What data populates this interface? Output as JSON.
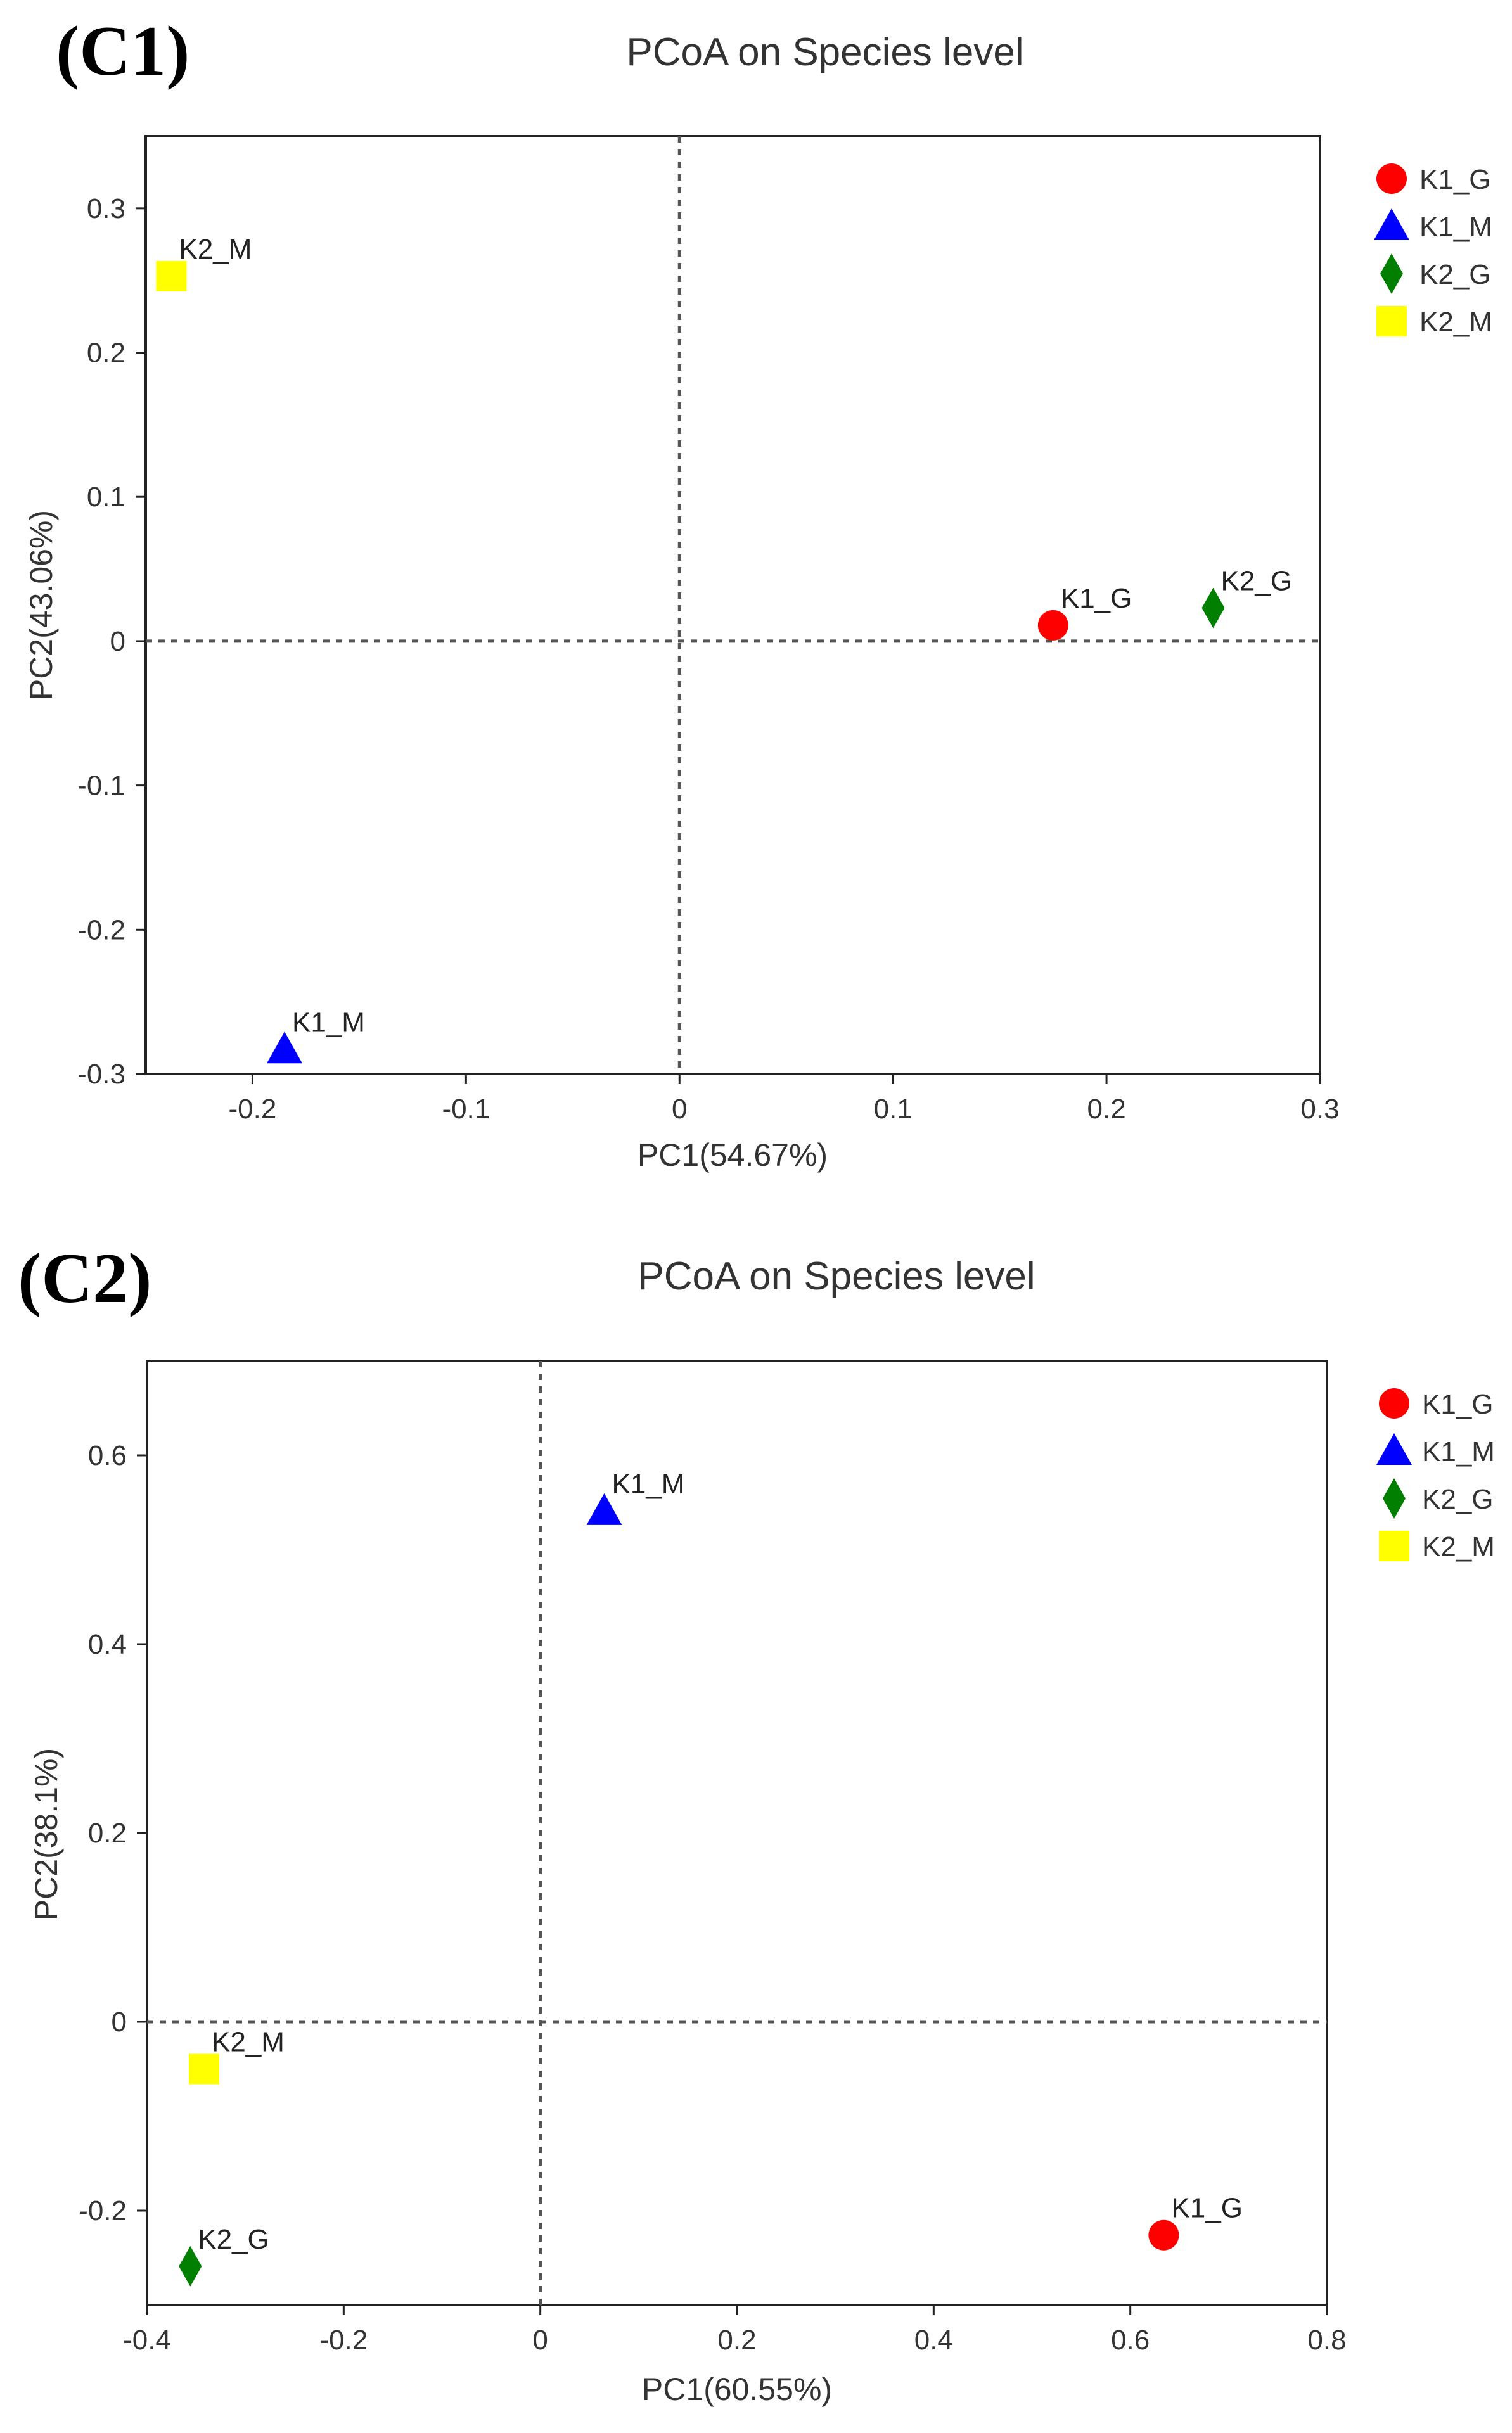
{
  "chart_data": [
    {
      "type": "scatter",
      "panel_label": "(C1)",
      "title": "PCoA on Species level",
      "xlabel": "PC1(54.67%)",
      "ylabel": "PC2(43.06%)",
      "xlim": [
        -0.25,
        0.3
      ],
      "ylim": [
        -0.3,
        0.35
      ],
      "xticks": [
        -0.2,
        -0.1,
        0,
        0.1,
        0.2,
        0.3
      ],
      "xtick_labels": [
        "-0.2",
        "-0.1",
        "0",
        "0.1",
        "0.2",
        "0.3"
      ],
      "yticks": [
        -0.3,
        -0.2,
        -0.1,
        0,
        0.1,
        0.2,
        0.3
      ],
      "ytick_labels": [
        "-0.3",
        "-0.2",
        "-0.1",
        "0",
        "0.1",
        "0.2",
        "0.3"
      ],
      "grid": false,
      "zero_lines": true,
      "legend_position": "right-top",
      "series": [
        {
          "name": "K1_G",
          "shape": "circle",
          "color": "#ff0000",
          "x": 0.175,
          "y": 0.011
        },
        {
          "name": "K1_M",
          "shape": "triangle",
          "color": "#0000ff",
          "x": -0.185,
          "y": -0.283
        },
        {
          "name": "K2_G",
          "shape": "diamond",
          "color": "#007f00",
          "x": 0.25,
          "y": 0.023
        },
        {
          "name": "K2_M",
          "shape": "square",
          "color": "#ffff00",
          "x": -0.238,
          "y": 0.253
        }
      ]
    },
    {
      "type": "scatter",
      "panel_label": "(C2)",
      "title": "PCoA on Species level",
      "xlabel": "PC1(60.55%)",
      "ylabel": "PC2(38.1%)",
      "xlim": [
        -0.4,
        0.8
      ],
      "ylim": [
        -0.3,
        0.7
      ],
      "xticks": [
        -0.4,
        -0.2,
        0,
        0.2,
        0.4,
        0.6,
        0.8
      ],
      "xtick_labels": [
        "-0.4",
        "-0.2",
        "0",
        "0.2",
        "0.4",
        "0.6",
        "0.8"
      ],
      "yticks": [
        -0.2,
        0,
        0.2,
        0.4,
        0.6
      ],
      "ytick_labels": [
        "-0.2",
        "0",
        "0.2",
        "0.4",
        "0.6"
      ],
      "grid": false,
      "zero_lines": true,
      "legend_position": "right-top",
      "series": [
        {
          "name": "K1_G",
          "shape": "circle",
          "color": "#ff0000",
          "x": 0.634,
          "y": -0.226
        },
        {
          "name": "K1_M",
          "shape": "triangle",
          "color": "#0000ff",
          "x": 0.065,
          "y": 0.541
        },
        {
          "name": "K2_G",
          "shape": "diamond",
          "color": "#007f00",
          "x": -0.356,
          "y": -0.259
        },
        {
          "name": "K2_M",
          "shape": "square",
          "color": "#ffff00",
          "x": -0.342,
          "y": -0.05
        }
      ]
    }
  ]
}
